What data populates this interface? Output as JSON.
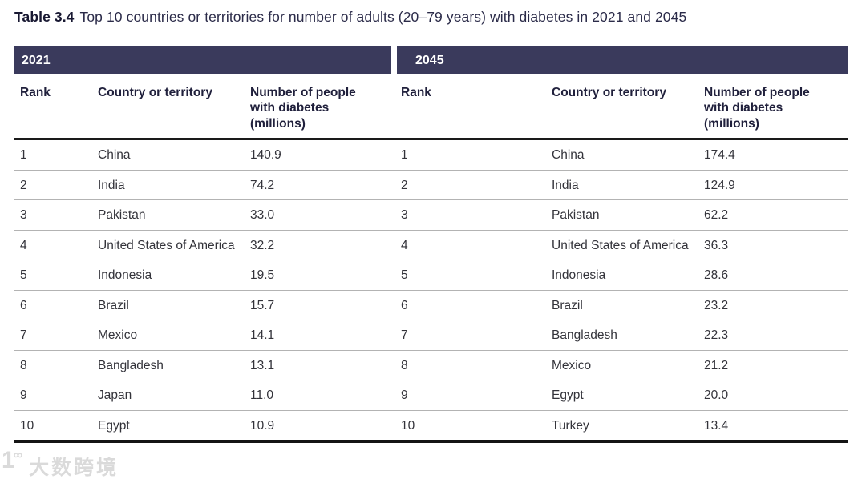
{
  "title": {
    "prefix": "Table 3.4",
    "text": "Top 10 countries or territories for number of adults (20–79 years) with diabetes in 2021 and 2045"
  },
  "table": {
    "sections": [
      {
        "year": "2021",
        "columns": [
          "Rank",
          "Country or territory",
          "Number of people with diabetes (millions)"
        ],
        "rows": [
          [
            "1",
            "China",
            "140.9"
          ],
          [
            "2",
            "India",
            "74.2"
          ],
          [
            "3",
            "Pakistan",
            "33.0"
          ],
          [
            "4",
            "United States of America",
            "32.2"
          ],
          [
            "5",
            "Indonesia",
            "19.5"
          ],
          [
            "6",
            "Brazil",
            "15.7"
          ],
          [
            "7",
            "Mexico",
            "14.1"
          ],
          [
            "8",
            "Bangladesh",
            "13.1"
          ],
          [
            "9",
            "Japan",
            "11.0"
          ],
          [
            "10",
            "Egypt",
            "10.9"
          ]
        ]
      },
      {
        "year": "2045",
        "columns": [
          "Rank",
          "Country or territory",
          "Number of people with diabetes (millions)"
        ],
        "rows": [
          [
            "1",
            "China",
            "174.4"
          ],
          [
            "2",
            "India",
            "124.9"
          ],
          [
            "3",
            "Pakistan",
            "62.2"
          ],
          [
            "4",
            "United States of America",
            "36.3"
          ],
          [
            "5",
            "Indonesia",
            "28.6"
          ],
          [
            "6",
            "Brazil",
            "23.2"
          ],
          [
            "7",
            "Bangladesh",
            "22.3"
          ],
          [
            "8",
            "Mexico",
            "21.2"
          ],
          [
            "9",
            "Egypt",
            "20.0"
          ],
          [
            "10",
            "Turkey",
            "13.4"
          ]
        ]
      }
    ]
  },
  "watermark": {
    "logo_main": "1",
    "logo_sup": "∞",
    "text": "大数跨境"
  },
  "colors": {
    "band": "#3a3a5c",
    "band_text": "#ffffff",
    "header_text": "#20203c",
    "body_text": "#33333a",
    "separator": "#b3b3b3",
    "heavy_border": "#1a1a1a",
    "title_text": "#2b2b49"
  }
}
